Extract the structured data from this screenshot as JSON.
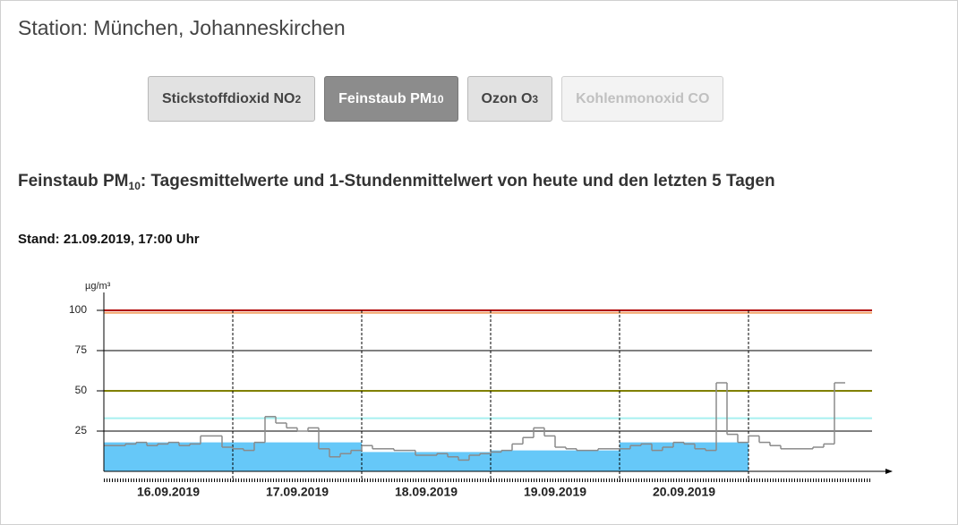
{
  "station": "Station: München, Johanneskirchen",
  "tabs": [
    {
      "text": "Stickstoffdioxid NO",
      "sub": "2",
      "state": "normal"
    },
    {
      "text": "Feinstaub PM",
      "sub": "10",
      "state": "active"
    },
    {
      "text": "Ozon O",
      "sub": "3",
      "state": "normal"
    },
    {
      "text": "Kohlenmonoxid CO",
      "state": "disabled"
    }
  ],
  "heading": {
    "text": "Feinstaub PM",
    "sub": "10",
    "rest": ": Tagesmittelwerte und 1-Stundenmittelwert von heute und den letzten 5 Tagen"
  },
  "stand": "Stand: 21.09.2019, 17:00 Uhr",
  "chart_data": {
    "type": "step",
    "y_label": "µg/m³",
    "categories": [
      "16.09.2019",
      "17.09.2019",
      "18.09.2019",
      "19.09.2019",
      "20.09.2019",
      null
    ],
    "ylim": [
      0,
      110
    ],
    "yticks": [
      25,
      50,
      75,
      100
    ],
    "grid": true,
    "ref_lines": [
      {
        "value": 100,
        "color": "#b00000"
      },
      {
        "value": 98.5,
        "color": "#f2a46a"
      },
      {
        "value": 50,
        "color": "#808000"
      },
      {
        "value": 33,
        "color": "#a8f0f0"
      }
    ],
    "daily_means": {
      "color": "#66c8f8",
      "values": [
        18,
        18,
        12,
        13,
        18,
        null
      ]
    },
    "hourly": {
      "color": "#8a8a8a",
      "values": [
        16,
        16,
        17,
        18,
        16,
        17,
        18,
        16,
        17,
        22,
        22,
        15,
        14,
        13,
        18,
        34,
        30,
        27,
        25,
        27,
        14,
        9,
        11,
        13,
        16,
        14,
        14,
        13,
        13,
        10,
        10,
        11,
        9,
        7,
        10,
        11,
        12,
        13,
        17,
        21,
        27,
        22,
        15,
        14,
        13,
        13,
        14,
        14,
        14,
        16,
        17,
        13,
        15,
        18,
        17,
        14,
        13,
        55,
        23,
        18,
        22,
        18,
        16,
        14,
        14,
        14,
        15,
        17,
        55
      ]
    }
  }
}
